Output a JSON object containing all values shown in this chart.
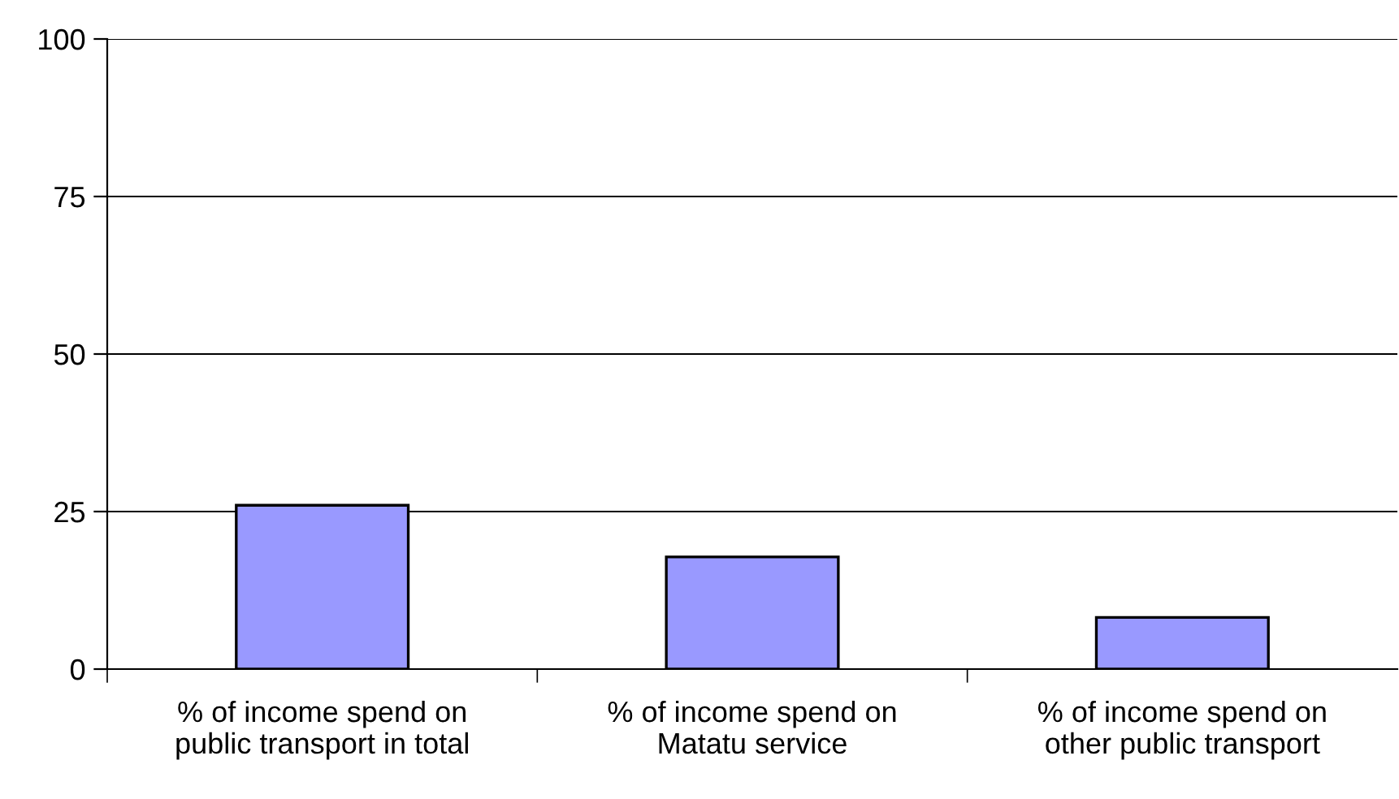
{
  "chart_data": {
    "type": "bar",
    "categories": [
      "% of income spend on\npublic transport in total",
      "% of income spend on\nMatatu service",
      "% of income spend on\nother public transport"
    ],
    "values": [
      26,
      17.8,
      8.2
    ],
    "color": "#9999ff",
    "ylim": [
      0,
      100
    ],
    "yticks": [
      0,
      25,
      50,
      75,
      100
    ],
    "grid": "y"
  }
}
